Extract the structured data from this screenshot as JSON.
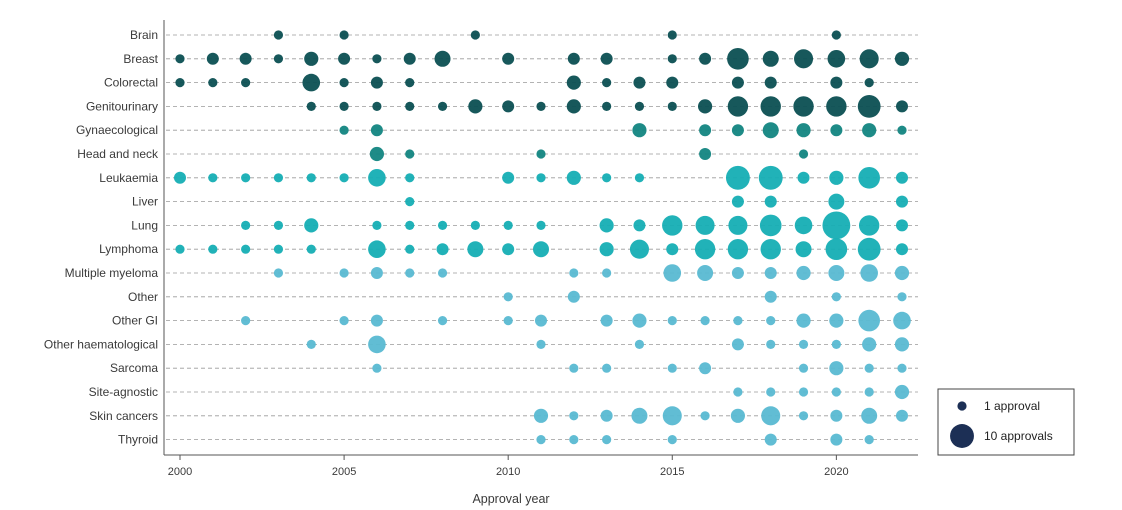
{
  "chart_data": {
    "type": "scatter",
    "subtype": "bubble",
    "title": "",
    "xlabel": "Approval year",
    "ylabel": "",
    "xlim": [
      2000,
      2022
    ],
    "xticks": [
      "2000",
      "2005",
      "2010",
      "2015",
      "2020"
    ],
    "categories": [
      "Brain",
      "Breast",
      "Colorectal",
      "Genitourinary",
      "Gynaecological",
      "Head and neck",
      "Leukaemia",
      "Liver",
      "Lung",
      "Lymphoma",
      "Multiple myeloma",
      "Other",
      "Other GI",
      "Other haematological",
      "Sarcoma",
      "Site-agnostic",
      "Skin cancers",
      "Thyroid"
    ],
    "category_colors": {
      "Brain": "#0b4f52",
      "Breast": "#0b4f52",
      "Colorectal": "#0b4f52",
      "Genitourinary": "#0b4f52",
      "Gynaecological": "#128581",
      "Head and neck": "#128581",
      "Leukaemia": "#15aeb4",
      "Liver": "#15aeb4",
      "Lung": "#15aeb4",
      "Lymphoma": "#15aeb4",
      "Multiple myeloma": "#59b9d2",
      "Other": "#59b9d2",
      "Other GI": "#59b9d2",
      "Other haematological": "#59b9d2",
      "Sarcoma": "#59b9d2",
      "Site-agnostic": "#59b9d2",
      "Skin cancers": "#59b9d2",
      "Thyroid": "#59b9d2"
    },
    "series": [
      {
        "name": "Brain",
        "points": [
          [
            2003,
            1
          ],
          [
            2005,
            1
          ],
          [
            2009,
            1
          ],
          [
            2015,
            1
          ],
          [
            2020,
            1
          ]
        ]
      },
      {
        "name": "Breast",
        "points": [
          [
            2000,
            1
          ],
          [
            2001,
            2
          ],
          [
            2002,
            2
          ],
          [
            2003,
            1
          ],
          [
            2004,
            3
          ],
          [
            2005,
            2
          ],
          [
            2006,
            1
          ],
          [
            2007,
            2
          ],
          [
            2008,
            4
          ],
          [
            2010,
            2
          ],
          [
            2012,
            2
          ],
          [
            2013,
            2
          ],
          [
            2015,
            1
          ],
          [
            2016,
            2
          ],
          [
            2017,
            8
          ],
          [
            2018,
            4
          ],
          [
            2019,
            6
          ],
          [
            2020,
            5
          ],
          [
            2021,
            6
          ],
          [
            2022,
            3
          ]
        ]
      },
      {
        "name": "Colorectal",
        "points": [
          [
            2000,
            1
          ],
          [
            2001,
            1
          ],
          [
            2002,
            1
          ],
          [
            2004,
            5
          ],
          [
            2005,
            1
          ],
          [
            2006,
            2
          ],
          [
            2007,
            1
          ],
          [
            2012,
            3
          ],
          [
            2013,
            1
          ],
          [
            2014,
            2
          ],
          [
            2015,
            2
          ],
          [
            2017,
            2
          ],
          [
            2018,
            2
          ],
          [
            2020,
            2
          ],
          [
            2021,
            1
          ]
        ]
      },
      {
        "name": "Genitourinary",
        "points": [
          [
            2004,
            1
          ],
          [
            2005,
            1
          ],
          [
            2006,
            1
          ],
          [
            2007,
            1
          ],
          [
            2008,
            1
          ],
          [
            2009,
            3
          ],
          [
            2010,
            2
          ],
          [
            2011,
            1
          ],
          [
            2012,
            3
          ],
          [
            2013,
            1
          ],
          [
            2014,
            1
          ],
          [
            2015,
            1
          ],
          [
            2016,
            3
          ],
          [
            2017,
            7
          ],
          [
            2018,
            7
          ],
          [
            2019,
            7
          ],
          [
            2020,
            7
          ],
          [
            2021,
            9
          ],
          [
            2022,
            2
          ]
        ]
      },
      {
        "name": "Gynaecological",
        "points": [
          [
            2005,
            1
          ],
          [
            2006,
            2
          ],
          [
            2014,
            3
          ],
          [
            2016,
            2
          ],
          [
            2017,
            2
          ],
          [
            2018,
            4
          ],
          [
            2019,
            3
          ],
          [
            2020,
            2
          ],
          [
            2021,
            3
          ],
          [
            2022,
            1
          ]
        ]
      },
      {
        "name": "Head and neck",
        "points": [
          [
            2006,
            3
          ],
          [
            2007,
            1
          ],
          [
            2011,
            1
          ],
          [
            2016,
            2
          ],
          [
            2019,
            1
          ]
        ]
      },
      {
        "name": "Leukaemia",
        "points": [
          [
            2000,
            2
          ],
          [
            2001,
            1
          ],
          [
            2002,
            1
          ],
          [
            2003,
            1
          ],
          [
            2004,
            1
          ],
          [
            2005,
            1
          ],
          [
            2006,
            5
          ],
          [
            2007,
            1
          ],
          [
            2010,
            2
          ],
          [
            2011,
            1
          ],
          [
            2012,
            3
          ],
          [
            2013,
            1
          ],
          [
            2014,
            1
          ],
          [
            2017,
            10
          ],
          [
            2018,
            10
          ],
          [
            2019,
            2
          ],
          [
            2020,
            3
          ],
          [
            2021,
            8
          ],
          [
            2022,
            2
          ]
        ]
      },
      {
        "name": "Liver",
        "points": [
          [
            2007,
            1
          ],
          [
            2017,
            2
          ],
          [
            2018,
            2
          ],
          [
            2020,
            4
          ],
          [
            2022,
            2
          ]
        ]
      },
      {
        "name": "Lung",
        "points": [
          [
            2002,
            1
          ],
          [
            2003,
            1
          ],
          [
            2004,
            3
          ],
          [
            2006,
            1
          ],
          [
            2007,
            1
          ],
          [
            2008,
            1
          ],
          [
            2009,
            1
          ],
          [
            2010,
            1
          ],
          [
            2011,
            1
          ],
          [
            2013,
            3
          ],
          [
            2014,
            2
          ],
          [
            2015,
            7
          ],
          [
            2016,
            6
          ],
          [
            2017,
            6
          ],
          [
            2018,
            8
          ],
          [
            2019,
            5
          ],
          [
            2020,
            14
          ],
          [
            2021,
            7
          ],
          [
            2022,
            2
          ]
        ]
      },
      {
        "name": "Lymphoma",
        "points": [
          [
            2000,
            1
          ],
          [
            2001,
            1
          ],
          [
            2002,
            1
          ],
          [
            2003,
            1
          ],
          [
            2004,
            1
          ],
          [
            2006,
            5
          ],
          [
            2007,
            1
          ],
          [
            2008,
            2
          ],
          [
            2009,
            4
          ],
          [
            2010,
            2
          ],
          [
            2011,
            4
          ],
          [
            2013,
            3
          ],
          [
            2014,
            6
          ],
          [
            2015,
            2
          ],
          [
            2016,
            7
          ],
          [
            2017,
            7
          ],
          [
            2018,
            7
          ],
          [
            2019,
            4
          ],
          [
            2020,
            8
          ],
          [
            2021,
            9
          ],
          [
            2022,
            2
          ]
        ]
      },
      {
        "name": "Multiple myeloma",
        "points": [
          [
            2003,
            1
          ],
          [
            2005,
            1
          ],
          [
            2006,
            2
          ],
          [
            2007,
            1
          ],
          [
            2008,
            1
          ],
          [
            2012,
            1
          ],
          [
            2013,
            1
          ],
          [
            2015,
            5
          ],
          [
            2016,
            4
          ],
          [
            2017,
            2
          ],
          [
            2018,
            2
          ],
          [
            2019,
            3
          ],
          [
            2020,
            4
          ],
          [
            2021,
            5
          ],
          [
            2022,
            3
          ]
        ]
      },
      {
        "name": "Other",
        "points": [
          [
            2010,
            1
          ],
          [
            2012,
            2
          ],
          [
            2018,
            2
          ],
          [
            2020,
            1
          ],
          [
            2022,
            1
          ]
        ]
      },
      {
        "name": "Other GI",
        "points": [
          [
            2002,
            1
          ],
          [
            2005,
            1
          ],
          [
            2006,
            2
          ],
          [
            2008,
            1
          ],
          [
            2010,
            1
          ],
          [
            2011,
            2
          ],
          [
            2013,
            2
          ],
          [
            2014,
            3
          ],
          [
            2015,
            1
          ],
          [
            2016,
            1
          ],
          [
            2017,
            1
          ],
          [
            2018,
            1
          ],
          [
            2019,
            3
          ],
          [
            2020,
            3
          ],
          [
            2021,
            8
          ],
          [
            2022,
            5
          ]
        ]
      },
      {
        "name": "Other haematological",
        "points": [
          [
            2004,
            1
          ],
          [
            2006,
            5
          ],
          [
            2011,
            1
          ],
          [
            2014,
            1
          ],
          [
            2017,
            2
          ],
          [
            2018,
            1
          ],
          [
            2019,
            1
          ],
          [
            2020,
            1
          ],
          [
            2021,
            3
          ],
          [
            2022,
            3
          ]
        ]
      },
      {
        "name": "Sarcoma",
        "points": [
          [
            2006,
            1
          ],
          [
            2012,
            1
          ],
          [
            2013,
            1
          ],
          [
            2015,
            1
          ],
          [
            2016,
            2
          ],
          [
            2019,
            1
          ],
          [
            2020,
            3
          ],
          [
            2021,
            1
          ],
          [
            2022,
            1
          ]
        ]
      },
      {
        "name": "Site-agnostic",
        "points": [
          [
            2017,
            1
          ],
          [
            2018,
            1
          ],
          [
            2019,
            1
          ],
          [
            2020,
            1
          ],
          [
            2021,
            1
          ],
          [
            2022,
            3
          ]
        ]
      },
      {
        "name": "Skin cancers",
        "points": [
          [
            2011,
            3
          ],
          [
            2012,
            1
          ],
          [
            2013,
            2
          ],
          [
            2014,
            4
          ],
          [
            2015,
            6
          ],
          [
            2016,
            1
          ],
          [
            2017,
            3
          ],
          [
            2018,
            6
          ],
          [
            2019,
            1
          ],
          [
            2020,
            2
          ],
          [
            2021,
            4
          ],
          [
            2022,
            2
          ]
        ]
      },
      {
        "name": "Thyroid",
        "points": [
          [
            2011,
            1
          ],
          [
            2012,
            1
          ],
          [
            2013,
            1
          ],
          [
            2015,
            1
          ],
          [
            2018,
            2
          ],
          [
            2020,
            2
          ],
          [
            2021,
            1
          ]
        ]
      }
    ],
    "legend": {
      "position": "bottom-right",
      "items": [
        {
          "label": "1 approval",
          "value": 1
        },
        {
          "label": "10 approvals",
          "value": 10
        }
      ],
      "color": "#1c2f55"
    },
    "grid": true
  }
}
